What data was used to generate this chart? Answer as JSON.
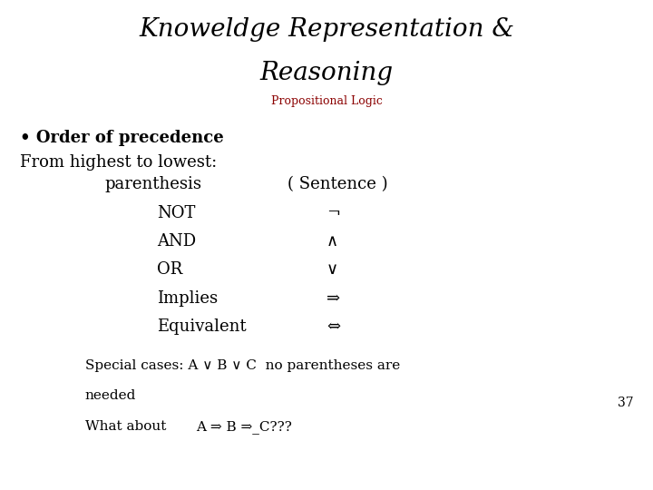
{
  "title_line1": "Knoweldge Representation &",
  "title_line2": "Reasoning",
  "subtitle": "Propositional Logic",
  "subtitle_color": "#8B0000",
  "bg_color": "#ffffff",
  "bullet": "• Order of precedence",
  "from_highest": "From highest to lowest:",
  "rows": [
    [
      "parenthesis",
      "( Sentence )"
    ],
    [
      "NOT",
      "¬"
    ],
    [
      "AND",
      "∧"
    ],
    [
      "OR",
      "∨"
    ],
    [
      "Implies",
      "⇒"
    ],
    [
      "Equivalent",
      "⇔"
    ]
  ],
  "special_line1": "Special cases: A ∨ B ∨ C  no parentheses are",
  "special_line2": "needed",
  "what_about": "What about",
  "what_about_formula": "A ⇒ B ⇒_C???",
  "page_number": "37",
  "title_fontsize": 20,
  "subtitle_fontsize": 9,
  "bullet_fontsize": 13,
  "body_fontsize": 13,
  "special_fontsize": 11,
  "page_fontsize": 10
}
